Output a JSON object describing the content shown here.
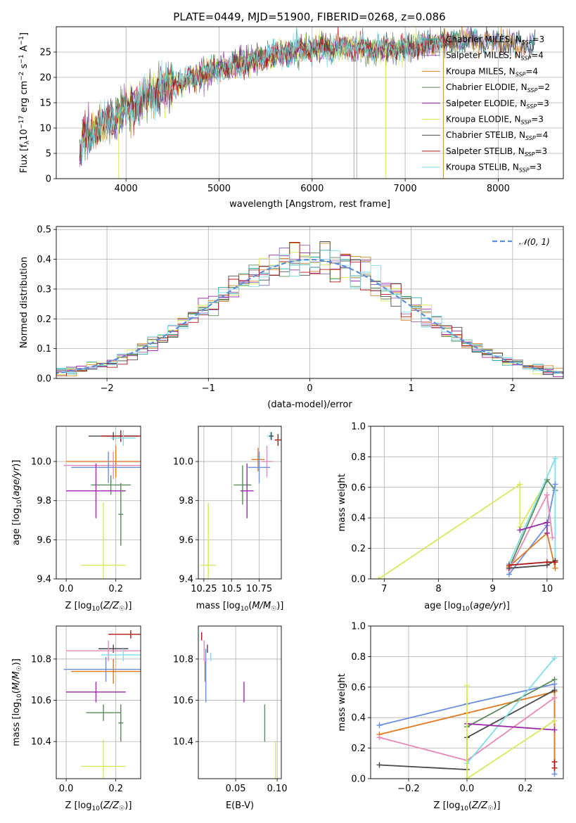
{
  "figure_title": "PLATE=0449, MJD=51900, FIBERID=0268, z=0.086",
  "colors": [
    "#1f77b4",
    "#9467bd",
    "#d1862a",
    "#5b8a5b",
    "#9a2aa8",
    "#d9e85c",
    "#4a4a4a",
    "#b01717",
    "#7fdfe6",
    "#6a8ee0",
    "#e07a1f",
    "#e889b8"
  ],
  "legend_spectrum": [
    {
      "label": "Chabrier MILES, N",
      "sub": "SSP",
      "tail": "=3",
      "color": "#2aa6a6"
    },
    {
      "label": "Salpeter MILES, N",
      "sub": "SSP",
      "tail": "=4",
      "color": "#9467bd"
    },
    {
      "label": "Kroupa MILES, N",
      "sub": "SSP",
      "tail": "=4",
      "color": "#d1862a"
    },
    {
      "label": "Chabrier ELODIE, N",
      "sub": "SSP",
      "tail": "=2",
      "color": "#5b8a5b"
    },
    {
      "label": "Salpeter ELODIE, N",
      "sub": "SSP",
      "tail": "=3",
      "color": "#9a2aa8"
    },
    {
      "label": "Kroupa ELODIE, N",
      "sub": "SSP",
      "tail": "=3",
      "color": "#d9e85c"
    },
    {
      "label": "Chabrier STELIB, N",
      "sub": "SSP",
      "tail": "=4",
      "color": "#4a4a4a"
    },
    {
      "label": "Salpeter STELIB, N",
      "sub": "SSP",
      "tail": "=3",
      "color": "#b01717"
    },
    {
      "label": "Kroupa STELIB, N",
      "sub": "SSP",
      "tail": "=3",
      "color": "#7fdfe6"
    }
  ],
  "legend_hist": {
    "label": "𝒩(0, 1)",
    "color": "#5b8dd9"
  },
  "chart_data": [
    {
      "id": "spectrum",
      "type": "line",
      "xlabel": "wavelength [Angstrom, rest frame]",
      "ylabel": "Flux [f_λ 10^-17 erg cm^-2 s^-1 A^-1]",
      "xlim": [
        3250,
        8700
      ],
      "ylim": [
        0,
        30
      ],
      "xticks": [
        4000,
        5000,
        6000,
        7000,
        8000
      ],
      "yticks": [
        0,
        5,
        10,
        15,
        20,
        25
      ],
      "continuum": [
        [
          3500,
          8
        ],
        [
          3700,
          10
        ],
        [
          3900,
          12.5
        ],
        [
          4000,
          14
        ],
        [
          4200,
          16
        ],
        [
          4500,
          18.5
        ],
        [
          4800,
          20.5
        ],
        [
          5100,
          22
        ],
        [
          5500,
          24
        ],
        [
          5900,
          25.5
        ],
        [
          6300,
          26
        ],
        [
          6700,
          25.5
        ],
        [
          7100,
          26
        ],
        [
          7500,
          27
        ],
        [
          7800,
          27.2
        ],
        [
          8100,
          26.8
        ],
        [
          8400,
          26.5
        ]
      ]
    },
    {
      "id": "residual-hist",
      "type": "bar",
      "xlabel": "(data-model)/error",
      "ylabel": "Normed distribution",
      "xlim": [
        -2.5,
        2.5
      ],
      "ylim": [
        0,
        0.51
      ],
      "xticks": [
        -2,
        -1,
        0,
        1,
        2
      ],
      "yticks": [
        0,
        0.1,
        0.2,
        0.3,
        0.4,
        0.5
      ],
      "bin_width": 0.1
    },
    {
      "id": "age-vs-Z",
      "type": "scatter",
      "xlabel": "Z [log10(Z/Z☉)]",
      "ylabel": "age [log10(age/yr)]",
      "xlim": [
        -0.04,
        0.3
      ],
      "ylim": [
        9.4,
        10.18
      ],
      "xticks": [
        0.0,
        0.2
      ],
      "yticks": [
        9.4,
        9.6,
        9.8,
        10.0
      ],
      "points": [
        {
          "x": 0.19,
          "y": 10.13,
          "xerr": 0.1,
          "yerr": 0.02,
          "c": "#4a4a4a"
        },
        {
          "x": 0.22,
          "y": 10.13,
          "xerr": 0.08,
          "yerr": 0.03,
          "c": "#b01717"
        },
        {
          "x": 0.23,
          "y": 10.12,
          "xerr": 0.05,
          "yerr": 0.04,
          "c": "#7fdfe6"
        },
        {
          "x": 0.2,
          "y": 10.0,
          "xerr": 0.2,
          "yerr": 0.08,
          "c": "#e07a1f"
        },
        {
          "x": 0.19,
          "y": 9.98,
          "xerr": 0.2,
          "yerr": 0.07,
          "c": "#e889b8"
        },
        {
          "x": 0.17,
          "y": 9.97,
          "xerr": 0.15,
          "yerr": 0.08,
          "c": "#6a8ee0"
        },
        {
          "x": 0.18,
          "y": 9.88,
          "xerr": 0.08,
          "yerr": 0.05,
          "c": "#5b8a5b"
        },
        {
          "x": 0.12,
          "y": 9.85,
          "xerr": 0.12,
          "yerr": 0.14,
          "c": "#9a2aa8"
        },
        {
          "x": 0.22,
          "y": 9.73,
          "xerr": 0.01,
          "yerr": 0.16,
          "c": "#5b8a5b"
        },
        {
          "x": 0.15,
          "y": 9.47,
          "xerr": 0.09,
          "yerr": 0.32,
          "c": "#d9e85c"
        }
      ]
    },
    {
      "id": "age-vs-mass",
      "type": "scatter",
      "xlabel": "mass [log10(M/M☉)]",
      "ylabel": "",
      "xlim": [
        10.2,
        10.95
      ],
      "ylim": [
        9.4,
        10.18
      ],
      "xticks": [
        10.25,
        10.5,
        10.75
      ],
      "yticks": [
        9.4,
        9.6,
        9.8,
        10.0
      ],
      "points": [
        {
          "x": 10.85,
          "y": 10.13,
          "xerr": 0.03,
          "yerr": 0.02,
          "c": "#7fdfe6"
        },
        {
          "x": 10.86,
          "y": 10.13,
          "xerr": 0.02,
          "yerr": 0.02,
          "c": "#4a4a4a"
        },
        {
          "x": 10.92,
          "y": 10.11,
          "xerr": 0.03,
          "yerr": 0.03,
          "c": "#b01717"
        },
        {
          "x": 10.74,
          "y": 10.01,
          "xerr": 0.06,
          "yerr": 0.06,
          "c": "#e07a1f"
        },
        {
          "x": 10.82,
          "y": 10.0,
          "xerr": 0.05,
          "yerr": 0.08,
          "c": "#e889b8"
        },
        {
          "x": 10.75,
          "y": 9.97,
          "xerr": 0.1,
          "yerr": 0.08,
          "c": "#6a8ee0"
        },
        {
          "x": 10.6,
          "y": 9.88,
          "xerr": 0.08,
          "yerr": 0.1,
          "c": "#5b8a5b"
        },
        {
          "x": 10.64,
          "y": 9.85,
          "xerr": 0.06,
          "yerr": 0.14,
          "c": "#9a2aa8"
        },
        {
          "x": 10.29,
          "y": 9.47,
          "xerr": 0.07,
          "yerr": 0.32,
          "c": "#d9e85c"
        }
      ]
    },
    {
      "id": "massweight-vs-age",
      "type": "line",
      "xlabel": "age [log10(age/yr)]",
      "ylabel": "mass weight",
      "xlim": [
        6.75,
        10.3
      ],
      "ylim": [
        0,
        1.0
      ],
      "xticks": [
        7,
        8,
        9,
        10
      ],
      "yticks": [
        0,
        0.2,
        0.4,
        0.6,
        0.8,
        1.0
      ],
      "series": [
        {
          "c": "#d9e85c",
          "pts": [
            [
              6.9,
              0.0
            ],
            [
              9.5,
              0.62
            ],
            [
              9.5,
              0.34
            ],
            [
              10.0,
              0.65
            ]
          ]
        },
        {
          "c": "#5b8a5b",
          "pts": [
            [
              9.3,
              0.07
            ],
            [
              10.0,
              0.65
            ],
            [
              10.15,
              0.58
            ]
          ]
        },
        {
          "c": "#7fdfe6",
          "pts": [
            [
              9.3,
              0.1
            ],
            [
              10.15,
              0.79
            ],
            [
              10.15,
              0.12
            ]
          ]
        },
        {
          "c": "#6a8ee0",
          "pts": [
            [
              9.3,
              0.03
            ],
            [
              10.0,
              0.35
            ],
            [
              10.15,
              0.62
            ]
          ]
        },
        {
          "c": "#e07a1f",
          "pts": [
            [
              9.3,
              0.08
            ],
            [
              10.0,
              0.3
            ],
            [
              10.15,
              0.07
            ]
          ]
        },
        {
          "c": "#e889b8",
          "pts": [
            [
              9.3,
              0.06
            ],
            [
              10.0,
              0.55
            ],
            [
              10.1,
              0.27
            ]
          ]
        },
        {
          "c": "#9a2aa8",
          "pts": [
            [
              9.5,
              0.32
            ],
            [
              10.0,
              0.37
            ],
            [
              10.0,
              0.3
            ]
          ]
        },
        {
          "c": "#4a4a4a",
          "pts": [
            [
              9.3,
              0.07
            ],
            [
              10.0,
              0.09
            ],
            [
              10.15,
              0.12
            ]
          ]
        },
        {
          "c": "#b01717",
          "pts": [
            [
              9.3,
              0.09
            ],
            [
              10.0,
              0.11
            ],
            [
              10.15,
              0.11
            ]
          ]
        }
      ]
    },
    {
      "id": "mass-vs-Z",
      "type": "scatter",
      "xlabel": "Z [log10(Z/Z☉)]",
      "ylabel": "mass [log10(M/M☉)]",
      "xlim": [
        -0.04,
        0.3
      ],
      "ylim": [
        10.22,
        10.96
      ],
      "xticks": [
        0.0,
        0.2
      ],
      "yticks": [
        10.4,
        10.6,
        10.8
      ],
      "points": [
        {
          "x": 0.26,
          "y": 10.92,
          "xerr": 0.09,
          "yerr": 0.02,
          "c": "#b01717"
        },
        {
          "x": 0.19,
          "y": 10.85,
          "xerr": 0.06,
          "yerr": 0.02,
          "c": "#4a4a4a"
        },
        {
          "x": 0.17,
          "y": 10.84,
          "xerr": 0.17,
          "yerr": 0.05,
          "c": "#e889b8"
        },
        {
          "x": 0.23,
          "y": 10.82,
          "xerr": 0.09,
          "yerr": 0.03,
          "c": "#7fdfe6"
        },
        {
          "x": 0.16,
          "y": 10.75,
          "xerr": 0.17,
          "yerr": 0.06,
          "c": "#6a8ee0"
        },
        {
          "x": 0.19,
          "y": 10.74,
          "xerr": 0.17,
          "yerr": 0.06,
          "c": "#e07a1f"
        },
        {
          "x": 0.12,
          "y": 10.64,
          "xerr": 0.12,
          "yerr": 0.05,
          "c": "#9a2aa8"
        },
        {
          "x": 0.15,
          "y": 10.54,
          "xerr": 0.07,
          "yerr": 0.04,
          "c": "#5b8a5b"
        },
        {
          "x": 0.22,
          "y": 10.49,
          "xerr": 0.01,
          "yerr": 0.09,
          "c": "#5b8a5b"
        },
        {
          "x": 0.15,
          "y": 10.28,
          "xerr": 0.09,
          "yerr": 0.13,
          "c": "#d9e85c"
        }
      ]
    },
    {
      "id": "mass-vs-EBV",
      "type": "scatter",
      "xlabel": "E(B-V)",
      "ylabel": "",
      "xlim": [
        0.005,
        0.105
      ],
      "ylim": [
        10.22,
        10.96
      ],
      "xticks": [
        0.05,
        0.1
      ],
      "yticks": [
        10.4,
        10.6,
        10.8
      ],
      "points": [
        {
          "x": 0.009,
          "y": 10.91,
          "xerr": 0.0,
          "yerr": 0.02,
          "c": "#b01717"
        },
        {
          "x": 0.016,
          "y": 10.85,
          "xerr": 0.0,
          "yerr": 0.02,
          "c": "#4a4a4a"
        },
        {
          "x": 0.02,
          "y": 10.81,
          "xerr": 0.0,
          "yerr": 0.02,
          "c": "#7fdfe6"
        },
        {
          "x": 0.012,
          "y": 10.84,
          "xerr": 0.0,
          "yerr": 0.05,
          "c": "#e889b8"
        },
        {
          "x": 0.013,
          "y": 10.74,
          "xerr": 0.0,
          "yerr": 0.05,
          "c": "#e07a1f"
        },
        {
          "x": 0.014,
          "y": 10.72,
          "xerr": 0.0,
          "yerr": 0.13,
          "c": "#6a8ee0"
        },
        {
          "x": 0.06,
          "y": 10.64,
          "xerr": 0.0,
          "yerr": 0.05,
          "c": "#9a2aa8"
        },
        {
          "x": 0.085,
          "y": 10.49,
          "xerr": 0.0,
          "yerr": 0.09,
          "c": "#5b8a5b"
        },
        {
          "x": 0.098,
          "y": 10.3,
          "xerr": 0.0,
          "yerr": 0.1,
          "c": "#d9e85c"
        }
      ]
    },
    {
      "id": "massweight-vs-Z",
      "type": "line",
      "xlabel": "Z [log10(Z/Z☉)]",
      "ylabel": "mass weight",
      "xlim": [
        -0.33,
        0.33
      ],
      "ylim": [
        0,
        1.0
      ],
      "xticks": [
        -0.2,
        0.0,
        0.2
      ],
      "yticks": [
        0,
        0.2,
        0.4,
        0.6,
        0.8,
        1.0
      ],
      "series": [
        {
          "c": "#6a8ee0",
          "pts": [
            [
              -0.3,
              0.35
            ],
            [
              0.0,
              0.49
            ],
            [
              0.3,
              0.62
            ],
            [
              0.3,
              0.03
            ]
          ]
        },
        {
          "c": "#e07a1f",
          "pts": [
            [
              -0.3,
              0.29
            ],
            [
              0.0,
              0.43
            ],
            [
              0.3,
              0.57
            ],
            [
              0.3,
              0.07
            ]
          ]
        },
        {
          "c": "#e889b8",
          "pts": [
            [
              -0.3,
              0.27
            ],
            [
              0.0,
              0.12
            ],
            [
              0.3,
              0.53
            ]
          ]
        },
        {
          "c": "#4a4a4a",
          "pts": [
            [
              -0.3,
              0.09
            ],
            [
              0.0,
              0.06
            ],
            [
              0.0,
              0.27
            ],
            [
              0.3,
              0.58
            ]
          ]
        },
        {
          "c": "#5b8a5b",
          "pts": [
            [
              0.0,
              0.34
            ],
            [
              0.3,
              0.65
            ]
          ]
        },
        {
          "c": "#7fdfe6",
          "pts": [
            [
              0.0,
              0.1
            ],
            [
              0.3,
              0.79
            ]
          ]
        },
        {
          "c": "#9a2aa8",
          "pts": [
            [
              0.0,
              0.36
            ],
            [
              0.3,
              0.32
            ]
          ]
        },
        {
          "c": "#d9e85c",
          "pts": [
            [
              0.0,
              0.61
            ],
            [
              0.0,
              0.0
            ],
            [
              0.3,
              0.38
            ]
          ]
        },
        {
          "c": "#b01717",
          "pts": [
            [
              0.3,
              0.07
            ],
            [
              0.3,
              0.11
            ]
          ]
        }
      ]
    }
  ]
}
